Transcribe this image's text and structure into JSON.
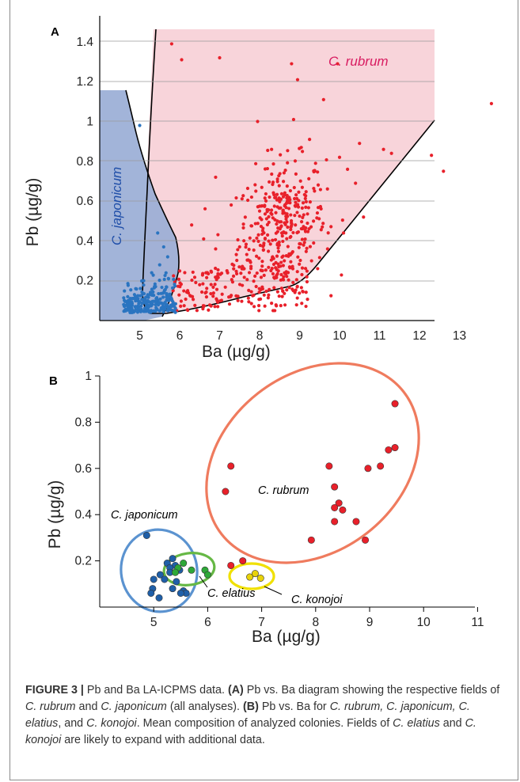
{
  "chart_data": [
    {
      "type": "scatter",
      "panel_label": "A",
      "xlabel": "Ba (µg/g)",
      "ylabel": "Pb (µg/g)",
      "xlim": [
        4,
        14
      ],
      "ylim": [
        0,
        1.47
      ],
      "xticks": [
        "5",
        "6",
        "7",
        "8",
        "9",
        "10",
        "11",
        "12",
        "13"
      ],
      "yticks": [
        "0.2",
        "0.4",
        "0.6",
        "0.8",
        "1",
        "1.2",
        "1.4"
      ],
      "grid": "horizontal",
      "field_labels": [
        "C. rubrum",
        "C. japonicum"
      ],
      "field_colors": {
        "C. rubrum": "#f8d4da",
        "C. japonicum": "#9aaed6"
      },
      "series": [
        {
          "name": "C. rubrum",
          "color": "#e8202a",
          "sample_points": [
            [
              5.8,
              1.39
            ],
            [
              6.05,
              1.31
            ],
            [
              7.0,
              1.32
            ],
            [
              8.8,
              1.29
            ],
            [
              8.95,
              1.21
            ],
            [
              9.95,
              1.29
            ],
            [
              9.6,
              1.11
            ],
            [
              13.8,
              1.09
            ],
            [
              8.85,
              1.01
            ],
            [
              7.95,
              1.0
            ],
            [
              6.3,
              0.48
            ],
            [
              6.9,
              0.72
            ],
            [
              8.3,
              0.86
            ],
            [
              9.25,
              0.91
            ],
            [
              10.5,
              0.89
            ],
            [
              11.1,
              0.86
            ],
            [
              11.3,
              0.84
            ],
            [
              12.3,
              0.83
            ],
            [
              10.2,
              0.76
            ],
            [
              10.4,
              0.69
            ],
            [
              12.6,
              0.75
            ],
            [
              9.4,
              0.79
            ],
            [
              10.0,
              0.82
            ],
            [
              7.8,
              0.62
            ],
            [
              8.0,
              0.55
            ],
            [
              8.2,
              0.43
            ],
            [
              7.5,
              0.37
            ],
            [
              6.9,
              0.36
            ],
            [
              6.6,
              0.41
            ],
            [
              6.2,
              0.15
            ],
            [
              6.5,
              0.18
            ],
            [
              7.2,
              0.24
            ],
            [
              7.6,
              0.26
            ],
            [
              8.6,
              0.22
            ],
            [
              9.3,
              0.3
            ],
            [
              9.7,
              0.36
            ],
            [
              10.1,
              0.44
            ],
            [
              10.6,
              0.52
            ]
          ]
        },
        {
          "name": "C. japonicum",
          "color": "#2a74c0",
          "sample_points": [
            [
              5.0,
              0.98
            ],
            [
              5.45,
              0.44
            ],
            [
              5.6,
              0.37
            ],
            [
              5.7,
              0.32
            ],
            [
              5.5,
              0.28
            ],
            [
              5.3,
              0.24
            ],
            [
              5.1,
              0.2
            ],
            [
              4.9,
              0.16
            ],
            [
              4.7,
              0.12
            ],
            [
              4.6,
              0.08
            ],
            [
              4.8,
              0.06
            ],
            [
              5.2,
              0.1
            ],
            [
              5.6,
              0.14
            ],
            [
              5.8,
              0.07
            ],
            [
              5.4,
              0.05
            ]
          ]
        }
      ]
    },
    {
      "type": "scatter",
      "panel_label": "B",
      "xlabel": "Ba (µg/g)",
      "ylabel": "Pb (µg/g)",
      "xlim": [
        4,
        11
      ],
      "ylim": [
        0,
        1
      ],
      "xticks": [
        "5",
        "6",
        "7",
        "8",
        "9",
        "10",
        "11"
      ],
      "yticks": [
        "0.2",
        "0.4",
        "0.6",
        "0.8",
        "1"
      ],
      "grid": "none",
      "annotations": [
        "C. japonicum",
        "C. rubrum",
        "C. elatius",
        "C. konojoi"
      ],
      "series": [
        {
          "name": "C. rubrum",
          "color": "#e8202a",
          "ellipse_color": "#ef7b5e",
          "points": [
            [
              9.47,
              0.88
            ],
            [
              9.47,
              0.69
            ],
            [
              9.35,
              0.68
            ],
            [
              9.2,
              0.61
            ],
            [
              8.97,
              0.6
            ],
            [
              8.25,
              0.61
            ],
            [
              6.43,
              0.61
            ],
            [
              6.33,
              0.5
            ],
            [
              8.35,
              0.52
            ],
            [
              8.43,
              0.45
            ],
            [
              8.5,
              0.42
            ],
            [
              8.35,
              0.43
            ],
            [
              8.35,
              0.37
            ],
            [
              8.75,
              0.37
            ],
            [
              7.92,
              0.29
            ],
            [
              8.92,
              0.29
            ],
            [
              6.65,
              0.2
            ],
            [
              6.43,
              0.18
            ]
          ]
        },
        {
          "name": "C. japonicum",
          "color": "#1f5fa8",
          "ellipse_color": "#5b93d0",
          "points": [
            [
              4.87,
              0.31
            ],
            [
              5.35,
              0.21
            ],
            [
              5.25,
              0.19
            ],
            [
              5.4,
              0.18
            ],
            [
              5.48,
              0.16
            ],
            [
              5.3,
              0.17
            ],
            [
              5.12,
              0.14
            ],
            [
              5.0,
              0.12
            ],
            [
              5.42,
              0.11
            ],
            [
              5.35,
              0.08
            ],
            [
              4.98,
              0.08
            ],
            [
              4.95,
              0.06
            ],
            [
              5.1,
              0.04
            ],
            [
              5.55,
              0.07
            ],
            [
              5.6,
              0.06
            ],
            [
              5.5,
              0.06
            ],
            [
              5.3,
              0.15
            ],
            [
              5.2,
              0.12
            ]
          ]
        },
        {
          "name": "C. elatius",
          "color": "#2ea838",
          "ellipse_color": "#66b845",
          "points": [
            [
              5.55,
              0.19
            ],
            [
              5.45,
              0.17
            ],
            [
              5.7,
              0.16
            ],
            [
              5.95,
              0.16
            ],
            [
              6.0,
              0.14
            ],
            [
              5.4,
              0.15
            ]
          ]
        },
        {
          "name": "C. konojoi",
          "color": "#e8d20a",
          "ellipse_color": "#f0e000",
          "points": [
            [
              6.78,
              0.13
            ],
            [
              6.88,
              0.145
            ],
            [
              6.98,
              0.125
            ]
          ]
        }
      ]
    }
  ],
  "caption": {
    "figure_label": "FIGURE 3 |",
    "title": "Pb and Ba LA-ICPMS data.",
    "a_label": "(A)",
    "a_text_1": "Pb vs. Ba diagram showing the respective fields of",
    "a_sp1": "C. rubrum",
    "a_text_2": "and",
    "a_sp2": "C. japonicum",
    "a_text_3": "(all analyses).",
    "b_label": "(B)",
    "b_text_1": "Pb vs. Ba for",
    "b_sp1": "C. rubrum, C. japonicum, C. elatius",
    "b_text_2": ", and",
    "b_sp2": "C. konojoi",
    "b_text_3": ". Mean composition of analyzed colonies. Fields of",
    "b_sp3": "C. elatius",
    "b_text_4": "and",
    "b_sp4": "C. konojoi",
    "b_text_5": "are likely to expand with additional data."
  }
}
